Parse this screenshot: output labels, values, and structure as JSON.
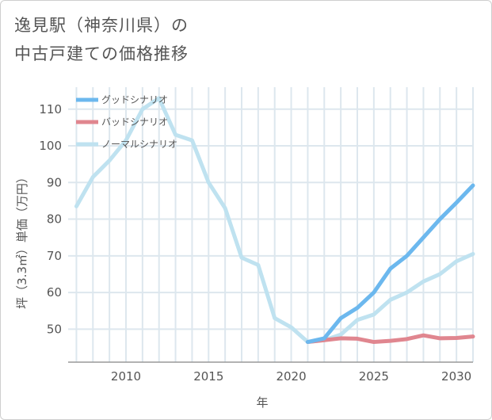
{
  "title": {
    "line1": "逸見駅（神奈川県）の",
    "line2": "中古戸建ての価格推移"
  },
  "colors": {
    "good": "#6cb8ee",
    "bad": "#e0868f",
    "normal": "#bfe2f0",
    "grid": "#dde7ee",
    "axis": "#999999"
  },
  "chart_data": {
    "type": "line",
    "xlabel": "年",
    "ylabel": "坪（3.3㎡）単価（万円）",
    "xlim": [
      2006.5,
      2031
    ],
    "ylim": [
      41,
      116
    ],
    "xticks": [
      2010,
      2015,
      2020,
      2025,
      2030
    ],
    "yticks": [
      50,
      60,
      70,
      80,
      90,
      100,
      110
    ],
    "legend_position": "top-left",
    "series": [
      {
        "key": "good",
        "name": "グッドシナリオ",
        "x": [
          2021,
          2022,
          2023,
          2024,
          2025,
          2026,
          2027,
          2028,
          2029,
          2030,
          2031
        ],
        "y": [
          46.5,
          47.5,
          53,
          55.8,
          60,
          66.5,
          70,
          75,
          80,
          84.5,
          89.2
        ]
      },
      {
        "key": "bad",
        "name": "バッドシナリオ",
        "x": [
          2021,
          2022,
          2023,
          2024,
          2025,
          2026,
          2027,
          2028,
          2029,
          2030,
          2031
        ],
        "y": [
          46.5,
          47,
          47.5,
          47.4,
          46.5,
          46.8,
          47.3,
          48.3,
          47.5,
          47.6,
          48
        ]
      },
      {
        "key": "normal",
        "name": "ノーマルシナリオ",
        "x": [
          2007,
          2008,
          2009,
          2010,
          2011,
          2012,
          2013,
          2014,
          2015,
          2016,
          2017,
          2018,
          2019,
          2020,
          2021,
          2022,
          2023,
          2024,
          2025,
          2026,
          2027,
          2028,
          2029,
          2030,
          2031
        ],
        "y": [
          83.5,
          91.5,
          96,
          101.5,
          110,
          113,
          103,
          101.5,
          90,
          83,
          69.5,
          67.5,
          53,
          50.5,
          46.5,
          47,
          48.5,
          52.5,
          54,
          58,
          60,
          63,
          65,
          68.5,
          70.5
        ]
      }
    ]
  }
}
